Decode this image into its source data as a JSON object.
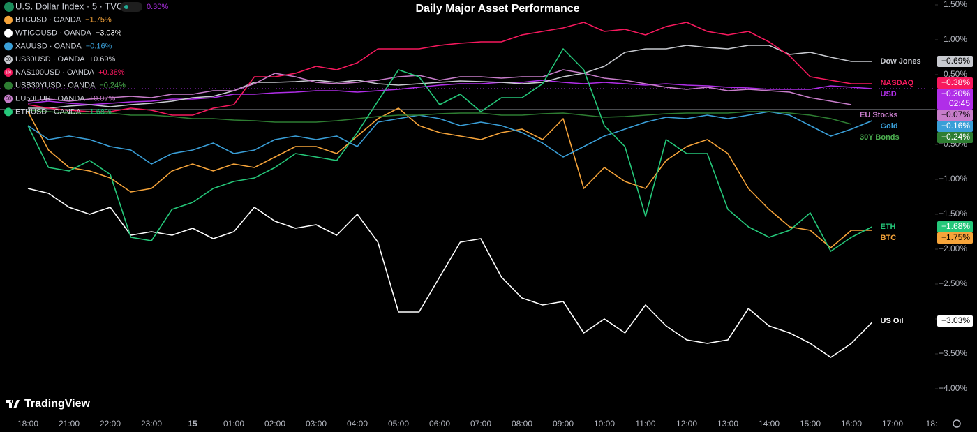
{
  "chart_data": {
    "type": "line",
    "title": "Daily Major Asset Performance",
    "header": {
      "symbol": "U.S. Dollar Index · 5 · TVC",
      "value_label": "0.30%"
    },
    "brand": "TradingView",
    "categories": [
      "18:00",
      null,
      "21:00",
      null,
      "22:00",
      null,
      "23:00",
      null,
      "15",
      null,
      "01:00",
      null,
      "02:00",
      null,
      "03:00",
      null,
      "04:00",
      null,
      "05:00",
      null,
      "06:00",
      null,
      "07:00",
      null,
      "08:00",
      null,
      "09:00",
      null,
      "10:00",
      null,
      "11:00",
      null,
      "12:00",
      null,
      "13:00",
      null,
      "14:00",
      null,
      "15:00",
      null,
      "16:00",
      null,
      "17:00",
      null,
      "18:"
    ],
    "ylim": [
      -4.1,
      1.6
    ],
    "yticks": [
      {
        "value": 1.5,
        "label": "1.50%"
      },
      {
        "value": 1.0,
        "label": "1.00%"
      },
      {
        "value": 0.5,
        "label": "0.50%"
      },
      {
        "value": 0,
        "label": "0.00%"
      },
      {
        "value": -0.5,
        "label": "−0.50%"
      },
      {
        "value": -1.0,
        "label": "−1.00%"
      },
      {
        "value": -1.5,
        "label": "−1.50%"
      },
      {
        "value": -2.0,
        "label": "−2.00%"
      },
      {
        "value": -2.5,
        "label": "−2.50%"
      },
      {
        "value": -3.0,
        "label": "−3.00%"
      },
      {
        "value": -3.5,
        "label": "−3.50%"
      },
      {
        "value": -4.0,
        "label": "−4.00%"
      }
    ],
    "grid": false,
    "series": [
      {
        "name": "USD",
        "symbol": null,
        "color": "#b02ee8",
        "last": 0.3,
        "last_label": "+0.30%",
        "countdown": "02:45",
        "values": [
          0.09,
          0.12,
          0.09,
          0.07,
          0.09,
          0.11,
          0.12,
          0.15,
          0.15,
          0.17,
          0.22,
          0.22,
          0.24,
          0.25,
          0.27,
          0.27,
          0.25,
          0.27,
          0.29,
          0.32,
          0.35,
          0.37,
          0.37,
          0.39,
          0.39,
          0.42,
          0.39,
          0.37,
          0.39,
          0.37,
          0.35,
          0.37,
          0.35,
          0.34,
          0.32,
          0.31,
          0.29,
          0.29,
          0.29,
          0.34,
          0.32,
          0.3,
          null,
          null,
          null
        ]
      },
      {
        "name": "BTC",
        "symbol": "BTCUSD · OANDA",
        "color": "#f6a43a",
        "last": -1.75,
        "last_label": "−1.75%",
        "values": [
          -0.03,
          -0.58,
          -0.83,
          -0.88,
          -0.98,
          -1.18,
          -1.13,
          -0.88,
          -0.78,
          -0.88,
          -0.78,
          -0.83,
          -0.68,
          -0.53,
          -0.53,
          -0.63,
          -0.38,
          -0.13,
          0.02,
          -0.23,
          -0.33,
          -0.38,
          -0.43,
          -0.33,
          -0.28,
          -0.43,
          -0.13,
          -1.13,
          -0.83,
          -1.03,
          -1.13,
          -0.73,
          -0.53,
          -0.43,
          -0.63,
          -1.13,
          -1.43,
          -1.68,
          -1.73,
          -1.98,
          -1.73,
          -1.73,
          null,
          null,
          null
        ]
      },
      {
        "name": "US Oil",
        "symbol": "WTICOUSD · OANDA",
        "color": "#ffffff",
        "last": -3.03,
        "last_label": "−3.03%",
        "values": [
          -1.13,
          -1.2,
          -1.4,
          -1.5,
          -1.4,
          -1.8,
          -1.75,
          -1.8,
          -1.7,
          -1.85,
          -1.75,
          -1.4,
          -1.6,
          -1.7,
          -1.65,
          -1.8,
          -1.5,
          -1.9,
          -2.9,
          -2.9,
          -2.4,
          -1.9,
          -1.85,
          -2.4,
          -2.7,
          -2.8,
          -2.75,
          -3.2,
          -3.0,
          -3.2,
          -2.8,
          -3.1,
          -3.3,
          -3.35,
          -3.3,
          -2.85,
          -3.1,
          -3.2,
          -3.35,
          -3.55,
          -3.35,
          -3.05,
          null,
          null,
          null
        ]
      },
      {
        "name": "Gold",
        "symbol": "XAUUSD · OANDA",
        "color": "#3a9fd8",
        "last": -0.16,
        "last_label": "−0.16%",
        "values": [
          -0.23,
          -0.43,
          -0.38,
          -0.43,
          -0.53,
          -0.58,
          -0.78,
          -0.63,
          -0.58,
          -0.48,
          -0.63,
          -0.58,
          -0.43,
          -0.38,
          -0.43,
          -0.38,
          -0.53,
          -0.18,
          -0.13,
          -0.08,
          -0.13,
          -0.23,
          -0.18,
          -0.23,
          -0.33,
          -0.48,
          -0.68,
          -0.53,
          -0.38,
          -0.28,
          -0.18,
          -0.11,
          -0.13,
          -0.08,
          -0.13,
          -0.08,
          -0.03,
          -0.08,
          -0.23,
          -0.38,
          -0.28,
          -0.16,
          null,
          null,
          null
        ]
      },
      {
        "name": "Dow Jones",
        "symbol": "US30USD · OANDA",
        "icon": "30",
        "color": "#c8cad0",
        "last": 0.69,
        "last_label": "+0.69%",
        "values": [
          0.02,
          0.02,
          0.05,
          0.07,
          0.04,
          0.07,
          0.09,
          0.12,
          0.17,
          0.19,
          0.27,
          0.39,
          0.39,
          0.4,
          0.42,
          0.39,
          0.42,
          0.37,
          0.35,
          0.37,
          0.39,
          0.41,
          0.4,
          0.39,
          0.37,
          0.39,
          0.47,
          0.52,
          0.62,
          0.82,
          0.87,
          0.87,
          0.92,
          0.89,
          0.87,
          0.92,
          0.92,
          0.79,
          0.82,
          0.75,
          0.69,
          0.69,
          null,
          null,
          null
        ]
      },
      {
        "name": "NASDAQ",
        "symbol": "NAS100USD · OANDA",
        "icon": "100",
        "color": "#f7195e",
        "last": 0.38,
        "last_label": "+0.38%",
        "values": [
          0.07,
          0.02,
          -0.01,
          -0.03,
          -0.03,
          0.02,
          -0.01,
          -0.08,
          -0.08,
          0.02,
          0.07,
          0.47,
          0.47,
          0.52,
          0.62,
          0.57,
          0.67,
          0.87,
          0.87,
          0.87,
          0.92,
          0.95,
          0.97,
          0.97,
          1.07,
          1.12,
          1.17,
          1.25,
          1.12,
          1.15,
          1.07,
          1.19,
          1.25,
          1.12,
          1.07,
          1.12,
          0.97,
          0.77,
          0.47,
          0.42,
          0.37,
          0.37,
          null,
          null,
          null
        ]
      },
      {
        "name": "30Y Bonds",
        "symbol": "USB30YUSD · OANDA",
        "color": "#2e7d32",
        "label_color": "#4caf50",
        "last": -0.24,
        "last_label": "−0.24%",
        "values": [
          -0.01,
          -0.03,
          -0.05,
          -0.06,
          -0.05,
          -0.08,
          -0.08,
          -0.1,
          -0.13,
          -0.13,
          -0.15,
          -0.16,
          -0.18,
          -0.18,
          -0.18,
          -0.16,
          -0.13,
          -0.1,
          -0.08,
          -0.08,
          -0.06,
          -0.05,
          -0.05,
          -0.08,
          -0.08,
          -0.06,
          -0.05,
          -0.08,
          -0.11,
          -0.1,
          -0.08,
          -0.06,
          -0.05,
          -0.05,
          -0.05,
          -0.03,
          -0.03,
          -0.05,
          -0.08,
          -0.13,
          -0.21,
          null,
          null,
          null,
          null
        ]
      },
      {
        "name": "EU Stocks",
        "symbol": "EU50EUR · OANDA",
        "icon": "50",
        "color": "#c77dca",
        "last": 0.07,
        "last_label": "+0.07%",
        "values": [
          0.12,
          0.15,
          0.12,
          0.15,
          0.17,
          0.19,
          0.17,
          0.22,
          0.22,
          0.27,
          0.27,
          0.37,
          0.52,
          0.47,
          0.39,
          0.37,
          0.39,
          0.42,
          0.47,
          0.49,
          0.42,
          0.47,
          0.47,
          0.45,
          0.47,
          0.47,
          0.57,
          0.52,
          0.45,
          0.42,
          0.37,
          0.32,
          0.29,
          0.32,
          0.27,
          0.29,
          0.27,
          0.25,
          0.17,
          0.12,
          0.07,
          null,
          null,
          null,
          null
        ]
      },
      {
        "name": "ETH",
        "symbol": "ETHUSD · OANDA",
        "color": "#25c87a",
        "last": -1.68,
        "last_label": "−1.68%",
        "values": [
          -0.23,
          -0.83,
          -0.88,
          -0.73,
          -0.93,
          -1.83,
          -1.88,
          -1.43,
          -1.33,
          -1.13,
          -1.03,
          -0.98,
          -0.83,
          -0.63,
          -0.68,
          -0.73,
          -0.33,
          0.12,
          0.57,
          0.47,
          0.07,
          0.22,
          -0.03,
          0.17,
          0.17,
          0.37,
          0.87,
          0.57,
          -0.23,
          -0.53,
          -1.53,
          -0.43,
          -0.63,
          -0.63,
          -1.43,
          -1.68,
          -1.83,
          -1.73,
          -1.48,
          -2.03,
          -1.83,
          -1.68,
          null,
          null,
          null
        ]
      }
    ]
  }
}
